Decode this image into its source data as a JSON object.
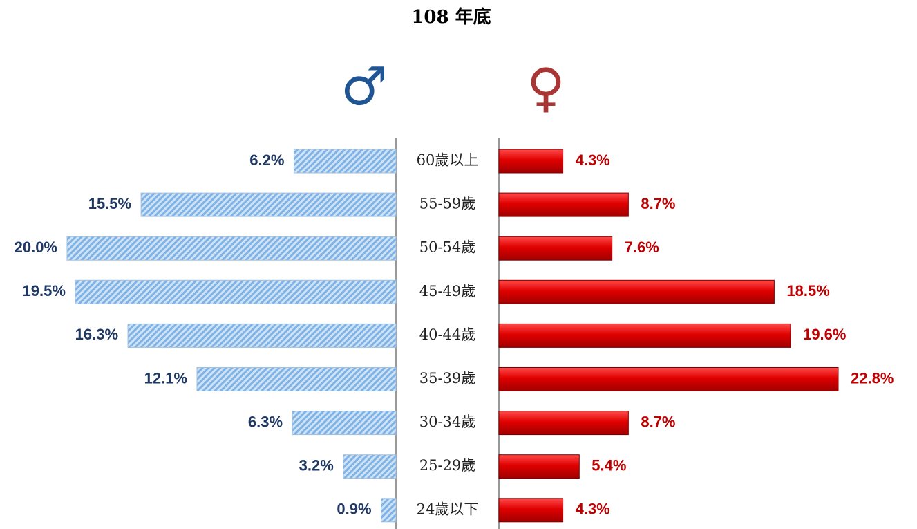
{
  "chart_data": {
    "type": "pyramid",
    "title": "108 年底",
    "categories": [
      "60歲以上",
      "55-59歲",
      "50-54歲",
      "45-49歲",
      "40-44歲",
      "35-39歲",
      "30-34歲",
      "25-29歲",
      "24歲以下"
    ],
    "series": [
      {
        "name": "♂",
        "color": "#7fb2e5",
        "label_color": "#1f3864",
        "symbol_color": "#1f5592",
        "values": [
          6.2,
          15.5,
          20.0,
          19.5,
          16.3,
          12.1,
          6.3,
          3.2,
          0.9
        ],
        "value_labels": [
          "6.2%",
          "15.5%",
          "20.0%",
          "19.5%",
          "16.3%",
          "12.1%",
          "6.3%",
          "3.2%",
          "0.9%"
        ]
      },
      {
        "name": "♀",
        "color": "#e00000",
        "label_color": "#c00000",
        "symbol_color": "#a93535",
        "values": [
          4.3,
          8.7,
          7.6,
          18.5,
          19.6,
          22.8,
          8.7,
          5.4,
          4.3
        ],
        "value_labels": [
          "4.3%",
          "8.7%",
          "7.6%",
          "18.5%",
          "19.6%",
          "22.8%",
          "8.7%",
          "5.4%",
          "4.3%"
        ]
      }
    ]
  }
}
